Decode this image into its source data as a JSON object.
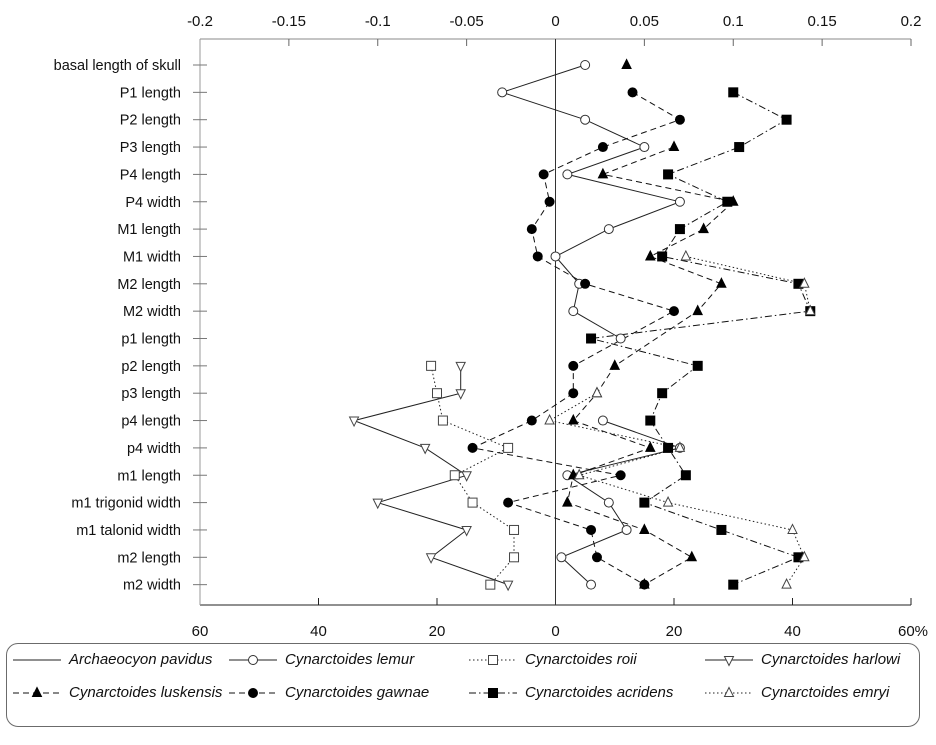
{
  "chart_data": {
    "type": "line",
    "orientation": "horizontal",
    "top_axis": {
      "min": -0.2,
      "max": 0.2,
      "ticks": [
        "-0.2",
        "-0.15",
        "-0.1",
        "-0.05",
        "0",
        "0.05",
        "0.1",
        "0.15",
        "0.2"
      ]
    },
    "bottom_axis": {
      "min": 60,
      "max": -60,
      "ticks": [
        "60",
        "40",
        "20",
        "0",
        "20",
        "40",
        "60%"
      ]
    },
    "categories": [
      "basal length of skull",
      "P1 length",
      "P2 length",
      "P3 length",
      "P4 length",
      "P4 width",
      "M1 length",
      "M1 width",
      "M2 length",
      "M2 width",
      "p1 length",
      "p2 length",
      "p3 length",
      "p4 length",
      "p4 width",
      "m1 length",
      "m1 trigonid width",
      "m1 talonid width",
      "m2 length",
      "m2 width"
    ],
    "x_units": "percent",
    "series": [
      {
        "name": "Archaeocyon pavidus",
        "line": "solid",
        "marker": "none",
        "color": "#222222",
        "points": []
      },
      {
        "name": "Cynarctoides lemur",
        "line": "solid",
        "marker": "circle-open",
        "color": "#222222",
        "points": [
          [
            0,
            5
          ],
          [
            1,
            -9
          ],
          [
            2,
            5
          ],
          [
            3,
            15
          ],
          [
            4,
            2
          ],
          [
            5,
            21
          ],
          [
            6,
            9
          ],
          [
            7,
            0
          ],
          [
            8,
            4
          ],
          [
            9,
            3
          ],
          [
            10,
            11
          ],
          [
            13,
            8
          ],
          [
            14,
            21
          ],
          [
            15,
            2
          ],
          [
            16,
            9
          ],
          [
            17,
            12
          ],
          [
            18,
            1
          ],
          [
            19,
            6
          ]
        ]
      },
      {
        "name": "Cynarctoides roii",
        "line": "dotted",
        "marker": "square-open",
        "color": "#222222",
        "points": [
          [
            11,
            -21
          ],
          [
            12,
            -20
          ],
          [
            13,
            -19
          ],
          [
            14,
            -8
          ],
          [
            15,
            -17
          ],
          [
            16,
            -14
          ],
          [
            17,
            -7
          ],
          [
            18,
            -7
          ],
          [
            19,
            -11
          ]
        ]
      },
      {
        "name": "Cynarctoides harlowi",
        "line": "solid",
        "marker": "triangle-down-open",
        "color": "#222222",
        "points": [
          [
            11,
            -16
          ],
          [
            12,
            -16
          ],
          [
            13,
            -34
          ],
          [
            14,
            -22
          ],
          [
            15,
            -15
          ],
          [
            16,
            -30
          ],
          [
            17,
            -15
          ],
          [
            18,
            -21
          ],
          [
            19,
            -8
          ]
        ]
      },
      {
        "name": "Cynarctoides luskensis",
        "line": "dashed",
        "marker": "triangle-filled",
        "color": "#111111",
        "points": [
          [
            0,
            12
          ],
          [
            3,
            20
          ],
          [
            4,
            8
          ],
          [
            5,
            30
          ],
          [
            6,
            25
          ],
          [
            7,
            16
          ],
          [
            8,
            28
          ],
          [
            9,
            24
          ],
          [
            11,
            10
          ],
          [
            12,
            7
          ],
          [
            13,
            3
          ],
          [
            14,
            16
          ],
          [
            15,
            3
          ],
          [
            16,
            2
          ],
          [
            17,
            15
          ],
          [
            18,
            23
          ],
          [
            19,
            15
          ]
        ]
      },
      {
        "name": "Cynarctoides gawnae",
        "line": "dashed",
        "marker": "circle-filled",
        "color": "#111111",
        "points": [
          [
            1,
            13
          ],
          [
            2,
            21
          ],
          [
            3,
            8
          ],
          [
            4,
            -2
          ],
          [
            5,
            -1
          ],
          [
            6,
            -4
          ],
          [
            7,
            -3
          ],
          [
            8,
            5
          ],
          [
            9,
            20
          ],
          [
            11,
            3
          ],
          [
            12,
            3
          ],
          [
            13,
            -4
          ],
          [
            14,
            -14
          ],
          [
            15,
            11
          ],
          [
            16,
            -8
          ],
          [
            17,
            6
          ],
          [
            18,
            7
          ],
          [
            19,
            15
          ]
        ]
      },
      {
        "name": "Cynarctoides acridens",
        "line": "dashdot",
        "marker": "square-filled",
        "color": "#111111",
        "points": [
          [
            1,
            30
          ],
          [
            2,
            39
          ],
          [
            3,
            31
          ],
          [
            4,
            19
          ],
          [
            5,
            29
          ],
          [
            6,
            21
          ],
          [
            7,
            18
          ],
          [
            8,
            41
          ],
          [
            9,
            43
          ],
          [
            10,
            6
          ],
          [
            11,
            24
          ],
          [
            12,
            18
          ],
          [
            13,
            16
          ],
          [
            14,
            19
          ],
          [
            15,
            22
          ],
          [
            16,
            15
          ],
          [
            17,
            28
          ],
          [
            18,
            41
          ],
          [
            19,
            30
          ]
        ]
      },
      {
        "name": "Cynarctoides emryi",
        "line": "dotted",
        "marker": "triangle-open",
        "color": "#222222",
        "points": [
          [
            7,
            22
          ],
          [
            8,
            42
          ],
          [
            9,
            43
          ],
          [
            12,
            7
          ],
          [
            13,
            -1
          ],
          [
            14,
            21
          ],
          [
            15,
            4
          ],
          [
            16,
            19
          ],
          [
            17,
            40
          ],
          [
            18,
            42
          ],
          [
            19,
            39
          ]
        ]
      }
    ],
    "grid": false,
    "legend_placement": "bottom",
    "legend_columns": 4
  }
}
